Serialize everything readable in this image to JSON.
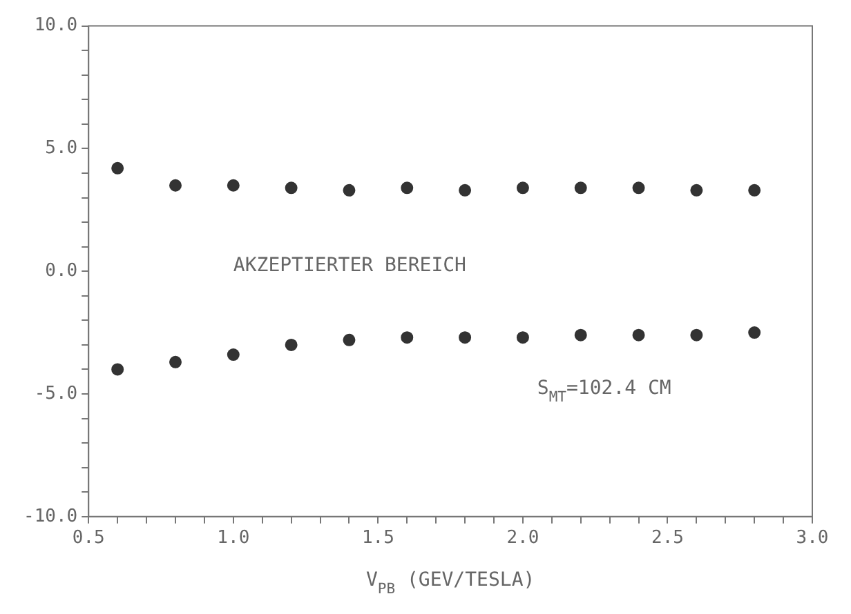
{
  "chart_data": {
    "type": "scatter",
    "xlabel": "V$_{PB}$ (GEV/TESLA)",
    "x": [
      0.6,
      0.8,
      1.0,
      1.2,
      1.4,
      1.6,
      1.8,
      2.0,
      2.2,
      2.4,
      2.6,
      2.8
    ],
    "series": [
      {
        "color": "#333333",
        "values": [
          4.2,
          3.5,
          3.5,
          3.4,
          3.3,
          3.4,
          3.3,
          3.4,
          3.4,
          3.4,
          3.3,
          3.3
        ]
      },
      {
        "color": "#333333",
        "values": [
          -4.0,
          -3.7,
          -3.4,
          -3.0,
          -2.8,
          -2.7,
          -2.7,
          -2.7,
          -2.6,
          -2.6,
          -2.6,
          -2.5
        ]
      }
    ],
    "xlim": [
      0.5,
      3.0
    ],
    "xticks": [
      {
        "value": 0.5,
        "label": "0.5"
      },
      {
        "value": 0.6,
        "label": null
      },
      {
        "value": 0.7,
        "label": null
      },
      {
        "value": 0.8,
        "label": null
      },
      {
        "value": 0.9,
        "label": null
      },
      {
        "value": 1.0,
        "label": "1.0"
      },
      {
        "value": 1.1,
        "label": null
      },
      {
        "value": 1.2,
        "label": null
      },
      {
        "value": 1.3,
        "label": null
      },
      {
        "value": 1.4,
        "label": null
      },
      {
        "value": 1.5,
        "label": "1.5"
      },
      {
        "value": 1.6,
        "label": null
      },
      {
        "value": 1.7,
        "label": null
      },
      {
        "value": 1.8,
        "label": null
      },
      {
        "value": 1.9,
        "label": null
      },
      {
        "value": 2.0,
        "label": "2.0"
      },
      {
        "value": 2.1,
        "label": null
      },
      {
        "value": 2.2,
        "label": null
      },
      {
        "value": 2.3,
        "label": null
      },
      {
        "value": 2.4,
        "label": null
      },
      {
        "value": 2.5,
        "label": "2.5"
      },
      {
        "value": 2.6,
        "label": null
      },
      {
        "value": 2.7,
        "label": null
      },
      {
        "value": 2.8,
        "label": null
      },
      {
        "value": 2.9,
        "label": null
      },
      {
        "value": 3.0,
        "label": "3.0"
      }
    ],
    "ylim": [
      -10,
      10
    ],
    "yticks": [
      {
        "value": -10,
        "label": "-10.0"
      },
      {
        "value": -9,
        "label": null
      },
      {
        "value": -8,
        "label": null
      },
      {
        "value": -7,
        "label": null
      },
      {
        "value": -6,
        "label": null
      },
      {
        "value": -5,
        "label": "-5.0"
      },
      {
        "value": -4,
        "label": null
      },
      {
        "value": -3,
        "label": null
      },
      {
        "value": -2,
        "label": null
      },
      {
        "value": -1,
        "label": null
      },
      {
        "value": 0,
        "label": "0.0"
      },
      {
        "value": 1,
        "label": null
      },
      {
        "value": 2,
        "label": null
      },
      {
        "value": 3,
        "label": null
      },
      {
        "value": 4,
        "label": null
      },
      {
        "value": 5,
        "label": "5.0"
      },
      {
        "value": 6,
        "label": null
      },
      {
        "value": 7,
        "label": null
      },
      {
        "value": 8,
        "label": null
      },
      {
        "value": 9,
        "label": null
      },
      {
        "value": 10,
        "label": "10.0"
      }
    ],
    "annotations": [
      "AKZEPTIERTER BEREICH",
      "S$_{MT}$=102.4 CM"
    ],
    "marker": "circle",
    "grid": false,
    "legend": false
  }
}
